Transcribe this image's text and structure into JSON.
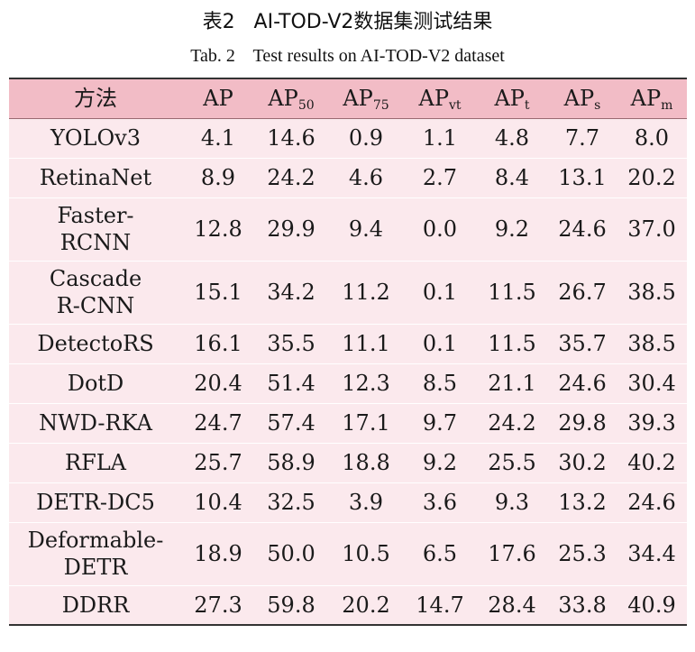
{
  "title": "表2   AI-TOD-V2数据集测试结果",
  "subtitle": "Tab. 2    Test results on AI-TOD-V2 dataset",
  "header": {
    "method": "方法",
    "columns": [
      {
        "base": "AP",
        "sub": ""
      },
      {
        "base": "AP",
        "sub": "50"
      },
      {
        "base": "AP",
        "sub": "75"
      },
      {
        "base": "AP",
        "sub": "vt"
      },
      {
        "base": "AP",
        "sub": "t"
      },
      {
        "base": "AP",
        "sub": "s"
      },
      {
        "base": "AP",
        "sub": "m"
      }
    ]
  },
  "rows": [
    {
      "method": [
        "YOLOv3"
      ],
      "values": [
        "4.1",
        "14.6",
        "0.9",
        "1.1",
        "4.8",
        "7.7",
        "8.0"
      ]
    },
    {
      "method": [
        "RetinaNet"
      ],
      "values": [
        "8.9",
        "24.2",
        "4.6",
        "2.7",
        "8.4",
        "13.1",
        "20.2"
      ]
    },
    {
      "method": [
        "Faster-",
        "RCNN"
      ],
      "values": [
        "12.8",
        "29.9",
        "9.4",
        "0.0",
        "9.2",
        "24.6",
        "37.0"
      ]
    },
    {
      "method": [
        "Cascade",
        "R-CNN"
      ],
      "values": [
        "15.1",
        "34.2",
        "11.2",
        "0.1",
        "11.5",
        "26.7",
        "38.5"
      ]
    },
    {
      "method": [
        "DetectoRS"
      ],
      "values": [
        "16.1",
        "35.5",
        "11.1",
        "0.1",
        "11.5",
        "35.7",
        "38.5"
      ]
    },
    {
      "method": [
        "DotD"
      ],
      "values": [
        "20.4",
        "51.4",
        "12.3",
        "8.5",
        "21.1",
        "24.6",
        "30.4"
      ]
    },
    {
      "method": [
        "NWD-RKA"
      ],
      "values": [
        "24.7",
        "57.4",
        "17.1",
        "9.7",
        "24.2",
        "29.8",
        "39.3"
      ]
    },
    {
      "method": [
        "RFLA"
      ],
      "values": [
        "25.7",
        "58.9",
        "18.8",
        "9.2",
        "25.5",
        "30.2",
        "40.2"
      ]
    },
    {
      "method": [
        "DETR-DC5"
      ],
      "values": [
        "10.4",
        "32.5",
        "3.9",
        "3.6",
        "9.3",
        "13.2",
        "24.6"
      ]
    },
    {
      "method": [
        "Deformable-",
        "DETR"
      ],
      "values": [
        "18.9",
        "50.0",
        "10.5",
        "6.5",
        "17.6",
        "25.3",
        "34.4"
      ]
    },
    {
      "method": [
        "DDRR"
      ],
      "values": [
        "27.3",
        "59.8",
        "20.2",
        "14.7",
        "28.4",
        "33.8",
        "40.9"
      ]
    }
  ],
  "colors": {
    "header_bg": "#f2bcc6",
    "row_bg": "#fbe9ed",
    "rule": "#333333"
  }
}
